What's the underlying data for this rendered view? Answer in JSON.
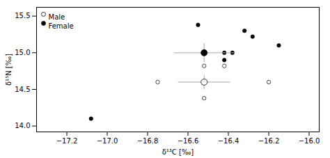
{
  "chart_data": {
    "type": "scatter",
    "xlabel": "δ¹³C [‰]",
    "ylabel": "δ¹⁵N [‰]",
    "xlim": [
      -17.35,
      -15.95
    ],
    "ylim": [
      13.92,
      15.62
    ],
    "xticks": [
      {
        "value": -17.2,
        "label": "−17.2"
      },
      {
        "value": -17.0,
        "label": "−17.0"
      },
      {
        "value": -16.8,
        "label": "−16.8"
      },
      {
        "value": -16.6,
        "label": "−16.6"
      },
      {
        "value": -16.4,
        "label": "−16.4"
      },
      {
        "value": -16.2,
        "label": "−16.2"
      },
      {
        "value": -16.0,
        "label": "−16.0"
      }
    ],
    "yticks": [
      {
        "value": 14.0,
        "label": "14.0"
      },
      14.5,
      {
        "value": 15.0,
        "label": "15.0"
      },
      15.5
    ],
    "grid": false,
    "legend": "upper left",
    "series": [
      {
        "name": "Male",
        "color": "white",
        "x": [
          -16.75,
          -16.52,
          -16.52,
          -16.42,
          -16.2
        ],
        "values": [
          14.6,
          14.82,
          14.38,
          14.82,
          14.6
        ],
        "mean": {
          "x": -16.52,
          "y": 14.6,
          "xerr": 0.13,
          "yerr": 0.1
        }
      },
      {
        "name": "Female",
        "color": "black",
        "x": [
          -17.08,
          -16.55,
          -16.42,
          -16.42,
          -16.32,
          -16.28,
          -16.38,
          -16.15
        ],
        "values": [
          14.1,
          15.38,
          15.0,
          14.9,
          15.3,
          15.22,
          15.0,
          15.1
        ],
        "mean": {
          "x": -16.52,
          "y": 15.0,
          "xerr": 0.15,
          "yerr": 0.13
        }
      }
    ]
  }
}
